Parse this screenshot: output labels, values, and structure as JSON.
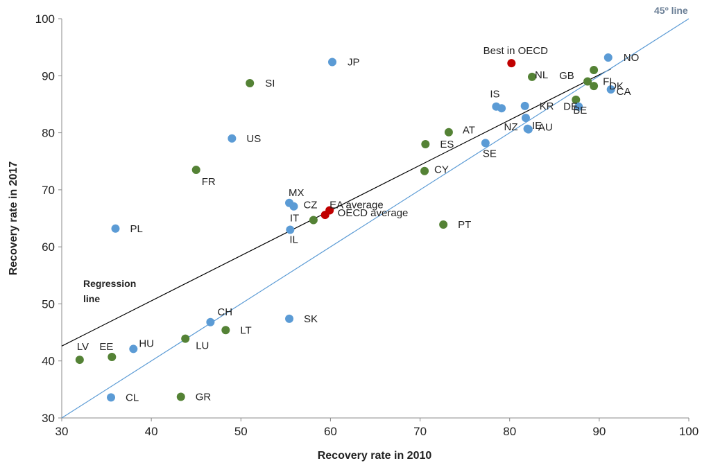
{
  "chart_data": {
    "type": "scatter",
    "xlabel": "Recovery rate in 2010",
    "ylabel": "Recovery rate in 2017",
    "xlim": [
      30,
      100
    ],
    "ylim": [
      30,
      100
    ],
    "x_ticks": [
      "30",
      "40",
      "50",
      "60",
      "70",
      "80",
      "90",
      "100"
    ],
    "y_ticks": [
      "30",
      "40",
      "50",
      "60",
      "70",
      "80",
      "90",
      "100"
    ],
    "grid": false,
    "colors": {
      "blue": "#5b9bd5",
      "green": "#548235",
      "red": "#c00000",
      "reg_line": "#000000",
      "diag_line": "#5b9bd5"
    },
    "lines": {
      "regression": {
        "label": "Regression line",
        "x1": 30,
        "y1": 42.6,
        "x2": 91.3,
        "y2": 91.2
      },
      "diagonal": {
        "label": "45º line",
        "x1": 30,
        "y1": 30,
        "x2": 100,
        "y2": 100
      }
    },
    "points": [
      {
        "label": "JP",
        "x": 60.2,
        "y": 92.4,
        "group": "blue"
      },
      {
        "label": "Best in OECD",
        "x": 80.2,
        "y": 92.2,
        "group": "red"
      },
      {
        "label": "NO",
        "x": 91.0,
        "y": 93.2,
        "group": "blue"
      },
      {
        "label": "GB",
        "x": 89.4,
        "y": 91.0,
        "group": "green"
      },
      {
        "label": "NL",
        "x": 82.5,
        "y": 89.8,
        "group": "green"
      },
      {
        "label": "FI",
        "x": 88.7,
        "y": 89.0,
        "group": "green"
      },
      {
        "label": "DK",
        "x": 89.4,
        "y": 88.2,
        "group": "green"
      },
      {
        "label": "CA",
        "x": 91.3,
        "y": 87.6,
        "group": "blue"
      },
      {
        "label": "SI",
        "x": 51.0,
        "y": 88.7,
        "group": "green"
      },
      {
        "label": "BE",
        "x": 87.4,
        "y": 85.8,
        "group": "green"
      },
      {
        "label": "IS",
        "x": 78.5,
        "y": 84.6,
        "group": "blue"
      },
      {
        "label": "",
        "x": 79.1,
        "y": 84.3,
        "group": "blue"
      },
      {
        "label": "KR",
        "x": 81.7,
        "y": 84.7,
        "group": "blue"
      },
      {
        "label": "DE",
        "x": 87.7,
        "y": 84.6,
        "group": "blue"
      },
      {
        "label": "IE",
        "x": 81.8,
        "y": 82.6,
        "group": "blue"
      },
      {
        "label": "NZ",
        "x": 82.0,
        "y": 80.7,
        "group": "blue"
      },
      {
        "label": "AU",
        "x": 82.1,
        "y": 80.6,
        "group": "blue"
      },
      {
        "label": "AT",
        "x": 73.2,
        "y": 80.1,
        "group": "green"
      },
      {
        "label": "US",
        "x": 49.0,
        "y": 79.0,
        "group": "blue"
      },
      {
        "label": "ES",
        "x": 70.6,
        "y": 78.0,
        "group": "green"
      },
      {
        "label": "SE",
        "x": 77.3,
        "y": 78.2,
        "group": "blue"
      },
      {
        "label": "FR",
        "x": 45.0,
        "y": 73.5,
        "group": "green"
      },
      {
        "label": "CY",
        "x": 70.5,
        "y": 73.3,
        "group": "green"
      },
      {
        "label": "MX",
        "x": 55.4,
        "y": 67.7,
        "group": "blue"
      },
      {
        "label": "CZ",
        "x": 55.9,
        "y": 67.1,
        "group": "blue"
      },
      {
        "label": "EA average",
        "x": 59.9,
        "y": 66.4,
        "group": "red"
      },
      {
        "label": "OECD average",
        "x": 59.4,
        "y": 65.6,
        "group": "red"
      },
      {
        "label": "IT",
        "x": 58.1,
        "y": 64.7,
        "group": "green"
      },
      {
        "label": "PT",
        "x": 72.6,
        "y": 63.9,
        "group": "green"
      },
      {
        "label": "PL",
        "x": 36.0,
        "y": 63.2,
        "group": "blue"
      },
      {
        "label": "IL",
        "x": 55.5,
        "y": 63.0,
        "group": "blue"
      },
      {
        "label": "SK",
        "x": 55.4,
        "y": 47.4,
        "group": "blue"
      },
      {
        "label": "CH",
        "x": 46.6,
        "y": 46.8,
        "group": "blue"
      },
      {
        "label": "LT",
        "x": 48.3,
        "y": 45.4,
        "group": "green"
      },
      {
        "label": "LU",
        "x": 43.8,
        "y": 43.9,
        "group": "green"
      },
      {
        "label": "HU",
        "x": 38.0,
        "y": 42.1,
        "group": "blue"
      },
      {
        "label": "EE",
        "x": 35.6,
        "y": 40.7,
        "group": "green"
      },
      {
        "label": "LV",
        "x": 32.0,
        "y": 40.2,
        "group": "green"
      },
      {
        "label": "CL",
        "x": 35.5,
        "y": 33.6,
        "group": "blue"
      },
      {
        "label": "GR",
        "x": 43.3,
        "y": 33.7,
        "group": "green"
      }
    ]
  }
}
